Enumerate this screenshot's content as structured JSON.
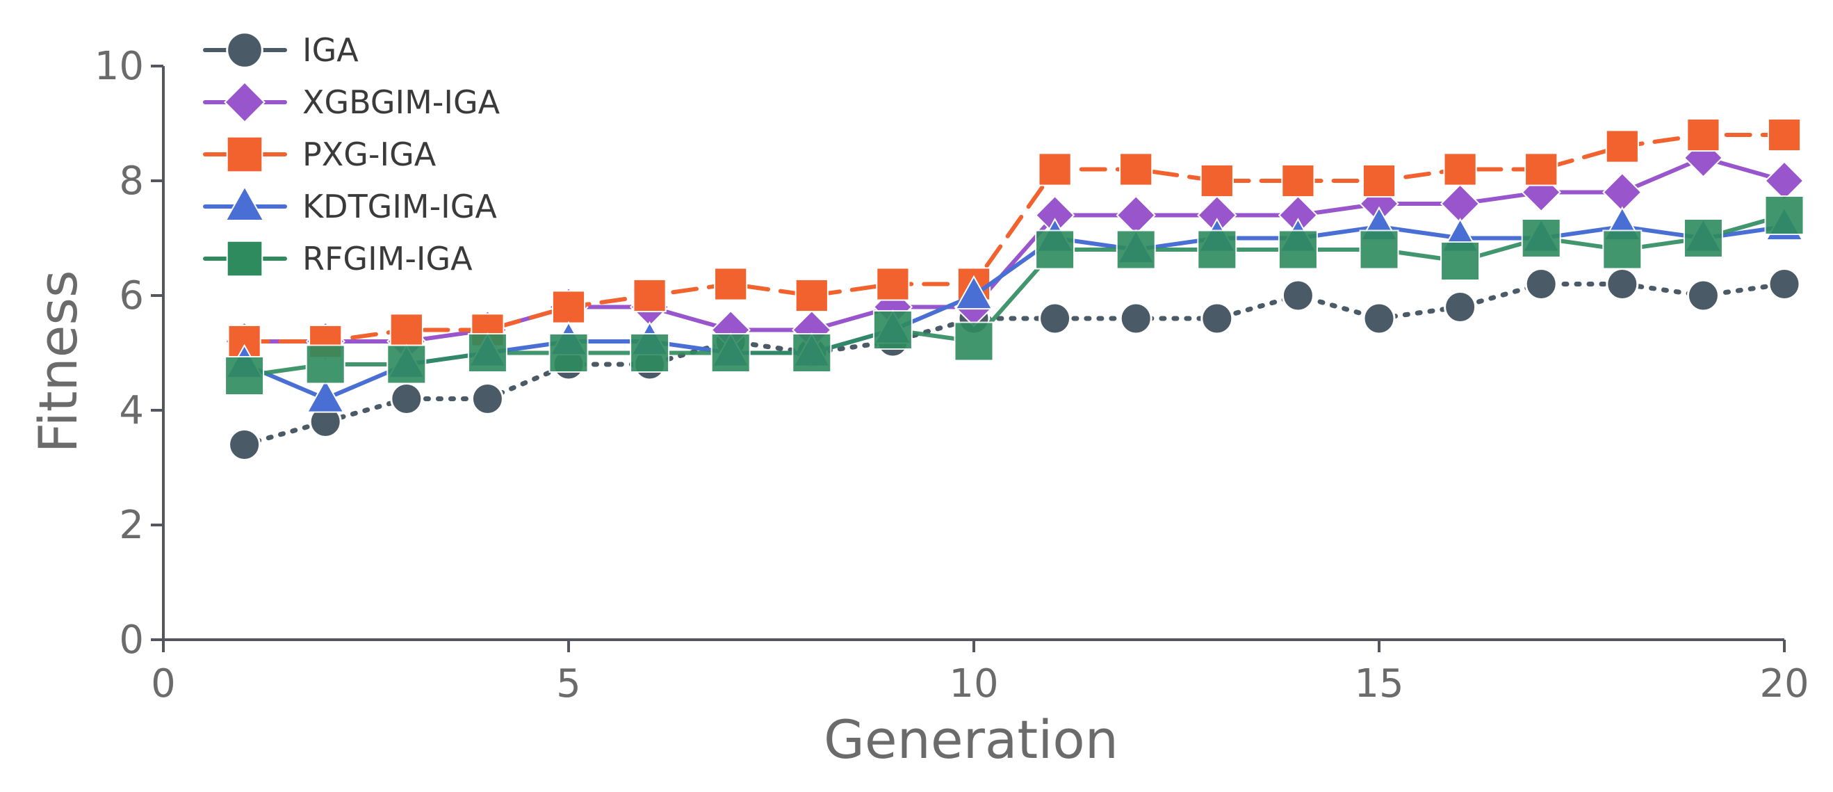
{
  "chart_data": {
    "type": "line",
    "title": "",
    "xlabel": "Generation",
    "ylabel": "Fitness",
    "xlim": [
      0,
      20
    ],
    "ylim": [
      0,
      10
    ],
    "xticks": [
      0,
      5,
      10,
      15,
      20
    ],
    "yticks": [
      0,
      2,
      4,
      6,
      8,
      10
    ],
    "x": [
      1,
      2,
      3,
      4,
      5,
      6,
      7,
      8,
      9,
      10,
      11,
      12,
      13,
      14,
      15,
      16,
      17,
      18,
      19,
      20
    ],
    "legend_position": "top-left",
    "series": [
      {
        "name": "IGA",
        "color": "#4a5a66",
        "marker": "circle",
        "linestyle": "dotted",
        "values": [
          3.4,
          3.8,
          4.2,
          4.2,
          4.8,
          4.8,
          5.2,
          5.0,
          5.2,
          5.6,
          5.6,
          5.6,
          5.6,
          6.0,
          5.6,
          5.8,
          6.2,
          6.2,
          6.0,
          6.2
        ]
      },
      {
        "name": "XGBGIM-IGA",
        "color": "#9955cc",
        "marker": "diamond",
        "linestyle": "solid",
        "values": [
          5.2,
          5.2,
          5.2,
          5.4,
          5.8,
          5.8,
          5.4,
          5.4,
          5.8,
          5.8,
          7.4,
          7.4,
          7.4,
          7.4,
          7.6,
          7.6,
          7.8,
          7.8,
          8.4,
          8.0
        ]
      },
      {
        "name": "PXG-IGA",
        "color": "#f2622e",
        "marker": "square",
        "linestyle": "dashed",
        "values": [
          5.2,
          5.2,
          5.4,
          5.4,
          5.8,
          6.0,
          6.2,
          6.0,
          6.2,
          6.2,
          8.2,
          8.2,
          8.0,
          8.0,
          8.0,
          8.2,
          8.2,
          8.6,
          8.8,
          8.8
        ]
      },
      {
        "name": "KDTGIM-IGA",
        "color": "#4a6fd4",
        "marker": "triangle",
        "linestyle": "solid",
        "values": [
          4.8,
          4.2,
          4.8,
          5.0,
          5.2,
          5.2,
          5.0,
          5.0,
          5.4,
          6.0,
          7.0,
          6.8,
          7.0,
          7.0,
          7.2,
          7.0,
          7.0,
          7.2,
          7.0,
          7.2
        ]
      },
      {
        "name": "RFGIM-IGA",
        "color": "#2e8b5e",
        "marker": "square",
        "linestyle": "solid",
        "values": [
          4.6,
          4.8,
          4.8,
          5.0,
          5.0,
          5.0,
          5.0,
          5.0,
          5.4,
          5.2,
          6.8,
          6.8,
          6.8,
          6.8,
          6.8,
          6.6,
          7.0,
          6.8,
          7.0,
          7.4
        ]
      }
    ]
  }
}
